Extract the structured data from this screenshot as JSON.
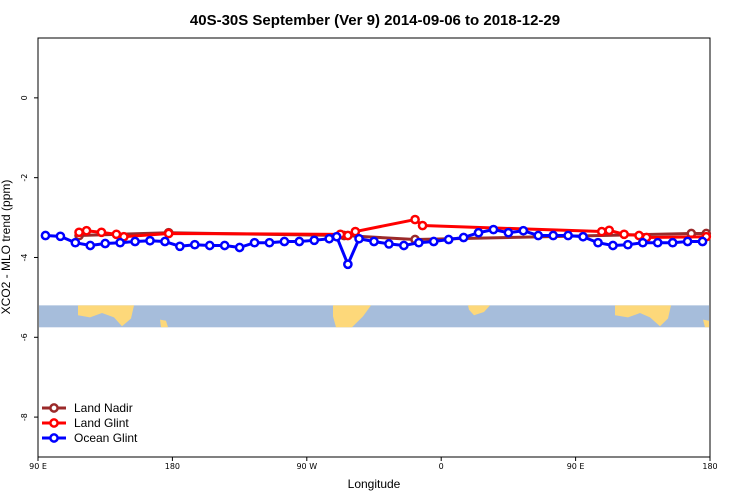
{
  "chart_data": {
    "type": "line",
    "title": "40S-30S September (Ver 9)   2014-09-06 to 2018-12-29",
    "xlabel": "Longitude",
    "ylabel": "XCO2 - MLO trend (ppm)",
    "xlim": [
      90,
      540
    ],
    "ylim": [
      -9,
      1.5
    ],
    "x_ticks": [
      {
        "value": 90,
        "label": "90 E"
      },
      {
        "value": 180,
        "label": "180"
      },
      {
        "value": 270,
        "label": "90 W"
      },
      {
        "value": 360,
        "label": "0"
      },
      {
        "value": 450,
        "label": "90 E"
      },
      {
        "value": 540,
        "label": "180"
      }
    ],
    "y_ticks": [
      {
        "value": 0,
        "label": "0"
      },
      {
        "value": -2,
        "label": "-2"
      },
      {
        "value": -4,
        "label": "-4"
      },
      {
        "value": -6,
        "label": "-6"
      },
      {
        "value": -8,
        "label": "-8"
      }
    ],
    "map_band": {
      "lat_range": [
        -40,
        -30
      ],
      "y_range": [
        -5.75,
        -5.2
      ],
      "ocean_color": "#a6bddb",
      "land_color": "#fdd87a"
    },
    "legend_position": "bottom-left",
    "series": [
      {
        "name": "Land Nadir",
        "color": "#9b2a2a",
        "x": [
          117.5,
          177.5,
          295,
          342.5,
          527.5,
          537.5
        ],
        "y": [
          -3.45,
          -3.38,
          -3.45,
          -3.55,
          -3.4,
          -3.4
        ]
      },
      {
        "name": "Land Glint",
        "color": "#ff0000",
        "x": [
          117.5,
          122.5,
          132.5,
          142.5,
          147.5,
          177.5,
          292.5,
          297.5,
          302.5,
          342.5,
          347.5,
          467.5,
          472.5,
          482.5,
          492.5,
          497.5,
          537.5
        ],
        "y": [
          -3.37,
          -3.33,
          -3.37,
          -3.42,
          -3.48,
          -3.4,
          -3.42,
          -3.45,
          -3.35,
          -3.05,
          -3.2,
          -3.35,
          -3.32,
          -3.42,
          -3.45,
          -3.5,
          -3.48
        ]
      },
      {
        "name": "Ocean Glint",
        "color": "#0000ff",
        "x": [
          95,
          105,
          115,
          125,
          135,
          145,
          155,
          165,
          175,
          185,
          195,
          205,
          215,
          225,
          235,
          245,
          255,
          265,
          275,
          285,
          290,
          297.5,
          305,
          315,
          325,
          335,
          345,
          355,
          365,
          375,
          385,
          395,
          405,
          415,
          425,
          435,
          445,
          455,
          465,
          475,
          485,
          495,
          505,
          515,
          525,
          535
        ],
        "y": [
          -3.45,
          -3.47,
          -3.63,
          -3.7,
          -3.65,
          -3.63,
          -3.6,
          -3.58,
          -3.6,
          -3.72,
          -3.68,
          -3.7,
          -3.7,
          -3.75,
          -3.63,
          -3.63,
          -3.6,
          -3.6,
          -3.57,
          -3.53,
          -3.48,
          -4.17,
          -3.53,
          -3.6,
          -3.66,
          -3.7,
          -3.63,
          -3.6,
          -3.55,
          -3.5,
          -3.38,
          -3.3,
          -3.38,
          -3.33,
          -3.45,
          -3.45,
          -3.45,
          -3.48,
          -3.63,
          -3.7,
          -3.68,
          -3.63,
          -3.63,
          -3.63,
          -3.6,
          -3.6
        ]
      }
    ]
  }
}
